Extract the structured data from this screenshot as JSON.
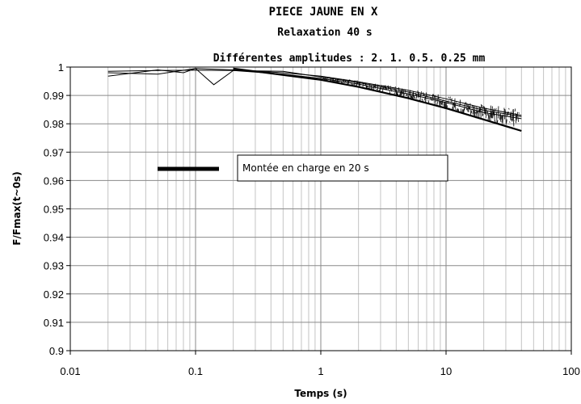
{
  "chart_data": {
    "type": "line",
    "title": "PIECE JAUNE EN X",
    "subtitle": "Relaxation 40 s",
    "subtitle2": "Différentes amplitudes : 2. 1. 0.5. 0.25 mm",
    "xlabel": "Temps (s)",
    "ylabel": "F/Fmax(t~0s)",
    "x_scale": "log",
    "xlim": [
      0.01,
      100
    ],
    "ylim": [
      0.9,
      1.0
    ],
    "x_ticks": [
      "0.01",
      "0.1",
      "1",
      "10",
      "100"
    ],
    "y_ticks": [
      "0.9",
      "0.91",
      "0.92",
      "0.93",
      "0.94",
      "0.95",
      "0.96",
      "0.97",
      "0.98",
      "0.99",
      "1"
    ],
    "grid": true,
    "legend_position": "center-left",
    "legend": [
      {
        "label": "Montée en charge en 20 s",
        "color": "#000000"
      }
    ],
    "series": [
      {
        "x": [
          0.02,
          0.05,
          0.1,
          0.2,
          0.5,
          1,
          2,
          5,
          10,
          20,
          40
        ],
        "y": [
          0.9985,
          0.9988,
          0.9989,
          0.9988,
          0.9975,
          0.996,
          0.994,
          0.9905,
          0.9875,
          0.984,
          0.9818
        ],
        "color": "#000000"
      },
      {
        "x": [
          0.02,
          0.05,
          0.08,
          0.1,
          0.14,
          0.2,
          0.5,
          1,
          2,
          5,
          10,
          20,
          40
        ],
        "y": [
          0.9968,
          0.999,
          0.998,
          0.9995,
          0.9938,
          0.9988,
          0.9985,
          0.9965,
          0.9945,
          0.9912,
          0.988,
          0.9848,
          0.9825
        ],
        "color": "#000000"
      },
      {
        "x": [
          0.02,
          0.05,
          0.1,
          0.2,
          0.5,
          1,
          2,
          5,
          10,
          20,
          40
        ],
        "y": [
          0.998,
          0.9975,
          0.9995,
          0.999,
          0.998,
          0.9968,
          0.9948,
          0.9918,
          0.9888,
          0.9855,
          0.983
        ],
        "color": "#000000"
      },
      {
        "x": [
          0.2,
          0.5,
          1,
          2,
          5,
          10,
          20,
          40
        ],
        "y": [
          0.9995,
          0.9972,
          0.9955,
          0.993,
          0.989,
          0.9855,
          0.9815,
          0.9775
        ],
        "color": "#000000"
      }
    ]
  }
}
